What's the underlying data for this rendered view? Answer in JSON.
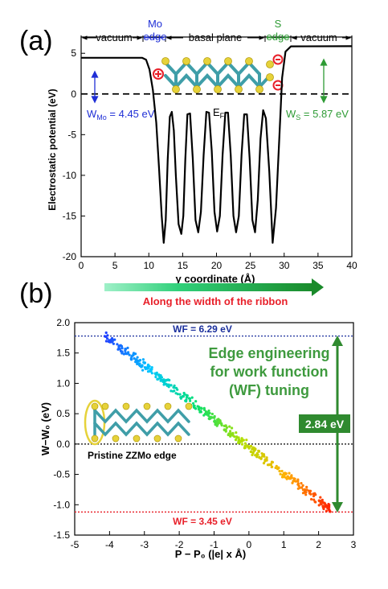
{
  "panel_a": {
    "label": "(a)",
    "region_labels": [
      "vacuum",
      "Mo edge",
      "basal plane",
      "S edge",
      "vacuum"
    ],
    "mo_edge_line1": "Mo",
    "mo_edge_line2": "edge",
    "s_edge_line1": "S",
    "s_edge_line2": "edge",
    "wf_mo_text": "W",
    "wf_mo_sub": "Mo",
    "wf_mo_value": " = 4.45 eV",
    "wf_s_text": "W",
    "wf_s_sub": "S",
    "wf_s_value": " = 5.87 eV",
    "fermi_label": "E",
    "fermi_sub": "F",
    "arrow_caption": "Along the width of the ribbon",
    "colors": {
      "mo": "#1f2fd6",
      "s": "#2e9b35",
      "caption": "#e8202a",
      "curve": "#000000"
    }
  },
  "panel_b": {
    "label": "(b)",
    "wf_top": "WF = 6.29 eV",
    "wf_bottom": "WF = 3.45 eV",
    "headline": [
      "Edge engineering",
      "for work function",
      "(WF) tuning"
    ],
    "delta_label": "2.84 eV",
    "structure_label": "Pristine ZZMo edge",
    "colors": {
      "top_line": "#1a2f9c",
      "bottom_line": "#e8202a",
      "headline": "#3e9a3e",
      "delta_box": "#2f8a2f"
    }
  },
  "chart_data": [
    {
      "type": "line",
      "ylabel": "Electrostatic potential (eV)",
      "xlabel": "y coordinate (Å)",
      "xlim": [
        0,
        40
      ],
      "ylim": [
        -20,
        7
      ],
      "xticks": [
        0,
        5,
        10,
        15,
        20,
        25,
        30,
        35,
        40
      ],
      "yticks": [
        -20,
        -15,
        -10,
        -5,
        0,
        5
      ],
      "reference_line": {
        "y": 0,
        "style": "dashed"
      },
      "series": [
        {
          "x": [
            0,
            9,
            9.6,
            10.1,
            10.6,
            11.1,
            11.5,
            11.9,
            12.2,
            12.5,
            12.8,
            13.1,
            13.4,
            13.7,
            14.0,
            14.4,
            14.8,
            15.1,
            15.4,
            15.7,
            16.1,
            16.5,
            16.9,
            17.3,
            17.7,
            18.1,
            18.5,
            18.9,
            19.3,
            19.7,
            20.1,
            20.5,
            20.9,
            21.3,
            21.7,
            22.1,
            22.5,
            22.9,
            23.3,
            23.7,
            24.1,
            24.5,
            24.9,
            25.3,
            25.7,
            26.1,
            26.5,
            26.9,
            27.3,
            27.8,
            28.3,
            28.8,
            29.3,
            29.7,
            30.2,
            31,
            40
          ],
          "y": [
            4.45,
            4.45,
            4.2,
            3.0,
            0.5,
            -3.5,
            -9.0,
            -15.0,
            -18.3,
            -15.5,
            -8.0,
            -2.8,
            -2.2,
            -4.5,
            -10.0,
            -16.0,
            -17.2,
            -15.0,
            -8.0,
            -2.5,
            -2.4,
            -8.0,
            -15.5,
            -17.0,
            -14.5,
            -7.5,
            -2.2,
            -2.3,
            -7.0,
            -14.5,
            -16.9,
            -15.0,
            -7.5,
            -2.3,
            -2.3,
            -7.5,
            -15.0,
            -17.0,
            -15.0,
            -7.5,
            -2.5,
            -2.5,
            -8.0,
            -15.5,
            -17.0,
            -13.0,
            -5.5,
            -2.0,
            -3.0,
            -9.5,
            -18.3,
            -14.0,
            -5.0,
            2.0,
            5.2,
            5.85,
            5.87
          ]
        }
      ]
    },
    {
      "type": "scatter",
      "ylabel": "W−W₀ (eV)",
      "xlabel": "P − P₀ (|e| x Å)",
      "xlim": [
        -5,
        3
      ],
      "ylim": [
        -1.5,
        2.0
      ],
      "xticks": [
        -5,
        -4,
        -3,
        -2,
        -1,
        0,
        1,
        2,
        3
      ],
      "yticks": [
        -1.5,
        -1.0,
        -0.5,
        0.0,
        0.5,
        1.0,
        1.5,
        2.0
      ],
      "reference_lines": [
        {
          "y": 1.78,
          "style": "dotted",
          "color": "#1a2f9c"
        },
        {
          "y": 0.0,
          "style": "dotted",
          "color": "#000000"
        },
        {
          "y": -1.12,
          "style": "dotted",
          "color": "#e8202a"
        }
      ],
      "trend": {
        "x_start": -4.1,
        "y_start": 1.78,
        "x_end": 2.35,
        "y_end": -1.08
      },
      "outliers": [
        [
          -0.3,
          0.02
        ],
        [
          0.3,
          -0.22
        ],
        [
          0.35,
          -0.24
        ],
        [
          0.15,
          -0.1
        ],
        [
          2.3,
          -1.08
        ]
      ],
      "color_scale": [
        "#2040ff",
        "#00c8ff",
        "#00e070",
        "#b0e000",
        "#ffb000",
        "#ff2000"
      ]
    }
  ]
}
